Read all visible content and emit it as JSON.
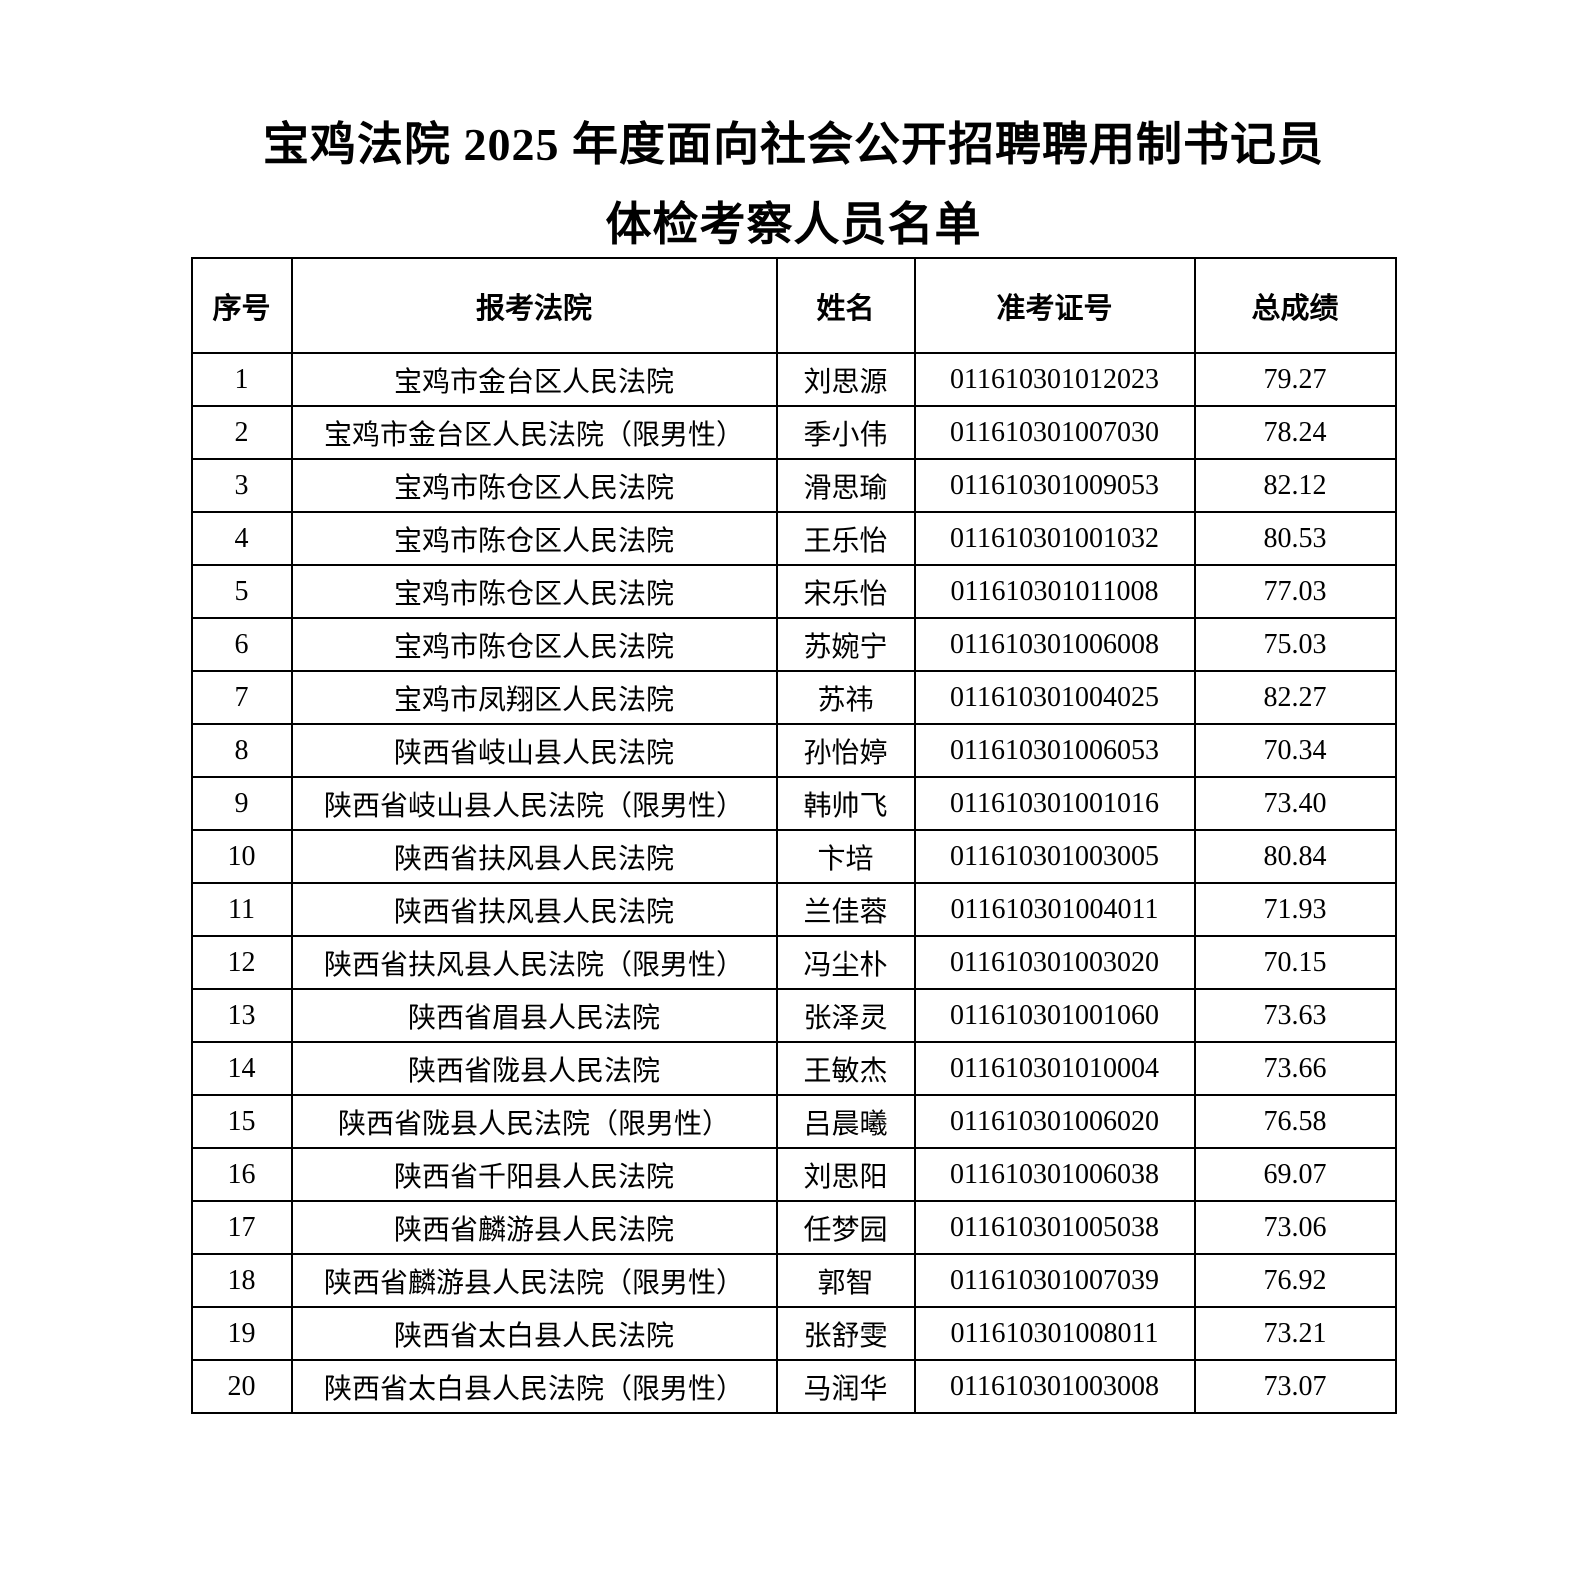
{
  "page": {
    "title_line1": "宝鸡法院 2025 年度面向社会公开招聘聘用制书记员",
    "title_line2": "体检考察人员名单"
  },
  "table": {
    "headers": [
      "序号",
      "报考法院",
      "姓名",
      "准考证号",
      "总成绩"
    ],
    "rows": [
      {
        "no": "1",
        "court": "宝鸡市金台区人民法院",
        "name": "刘思源",
        "ticket": "011610301012023",
        "score": "79.27"
      },
      {
        "no": "2",
        "court": "宝鸡市金台区人民法院（限男性）",
        "name": "季小伟",
        "ticket": "011610301007030",
        "score": "78.24"
      },
      {
        "no": "3",
        "court": "宝鸡市陈仓区人民法院",
        "name": "滑思瑜",
        "ticket": "011610301009053",
        "score": "82.12"
      },
      {
        "no": "4",
        "court": "宝鸡市陈仓区人民法院",
        "name": "王乐怡",
        "ticket": "011610301001032",
        "score": "80.53"
      },
      {
        "no": "5",
        "court": "宝鸡市陈仓区人民法院",
        "name": "宋乐怡",
        "ticket": "011610301011008",
        "score": "77.03"
      },
      {
        "no": "6",
        "court": "宝鸡市陈仓区人民法院",
        "name": "苏婉宁",
        "ticket": "011610301006008",
        "score": "75.03"
      },
      {
        "no": "7",
        "court": "宝鸡市凤翔区人民法院",
        "name": "苏祎",
        "ticket": "011610301004025",
        "score": "82.27"
      },
      {
        "no": "8",
        "court": "陕西省岐山县人民法院",
        "name": "孙怡婷",
        "ticket": "011610301006053",
        "score": "70.34"
      },
      {
        "no": "9",
        "court": "陕西省岐山县人民法院（限男性）",
        "name": "韩帅飞",
        "ticket": "011610301001016",
        "score": "73.40"
      },
      {
        "no": "10",
        "court": "陕西省扶风县人民法院",
        "name": "卞培",
        "ticket": "011610301003005",
        "score": "80.84"
      },
      {
        "no": "11",
        "court": "陕西省扶风县人民法院",
        "name": "兰佳蓉",
        "ticket": "011610301004011",
        "score": "71.93"
      },
      {
        "no": "12",
        "court": "陕西省扶风县人民法院（限男性）",
        "name": "冯尘朴",
        "ticket": "011610301003020",
        "score": "70.15"
      },
      {
        "no": "13",
        "court": "陕西省眉县人民法院",
        "name": "张泽灵",
        "ticket": "011610301001060",
        "score": "73.63"
      },
      {
        "no": "14",
        "court": "陕西省陇县人民法院",
        "name": "王敏杰",
        "ticket": "011610301010004",
        "score": "73.66"
      },
      {
        "no": "15",
        "court": "陕西省陇县人民法院（限男性）",
        "name": "吕晨曦",
        "ticket": "011610301006020",
        "score": "76.58"
      },
      {
        "no": "16",
        "court": "陕西省千阳县人民法院",
        "name": "刘思阳",
        "ticket": "011610301006038",
        "score": "69.07"
      },
      {
        "no": "17",
        "court": "陕西省麟游县人民法院",
        "name": "任梦园",
        "ticket": "011610301005038",
        "score": "73.06"
      },
      {
        "no": "18",
        "court": "陕西省麟游县人民法院（限男性）",
        "name": "郭智",
        "ticket": "011610301007039",
        "score": "76.92"
      },
      {
        "no": "19",
        "court": "陕西省太白县人民法院",
        "name": "张舒雯",
        "ticket": "011610301008011",
        "score": "73.21"
      },
      {
        "no": "20",
        "court": "陕西省太白县人民法院（限男性）",
        "name": "马润华",
        "ticket": "011610301003008",
        "score": "73.07"
      }
    ]
  }
}
